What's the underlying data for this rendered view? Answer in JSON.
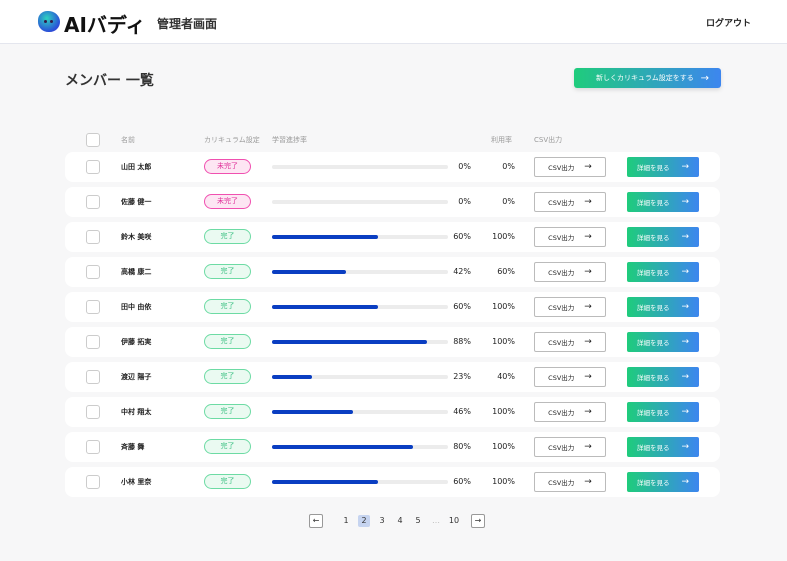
{
  "header": {
    "logo": "AIバディ",
    "subtitle": "管理者画面",
    "logout": "ログアウト"
  },
  "page": {
    "title": "メンバー 一覧",
    "new_button": "新しくカリキュラム設定をする",
    "arrow": "→"
  },
  "columns": {
    "name": "名前",
    "curriculum": "カリキュラム設定",
    "progress": "学習進捗率",
    "usage": "利用率",
    "csv": "CSV出力"
  },
  "colors": {
    "incomplete": "#e0309a",
    "complete": "#3cc184",
    "progress": "#0a3ec2"
  },
  "rows": [
    {
      "name": "山田 太郎",
      "status": "未完了",
      "done": false,
      "progress": 0,
      "progress_label": "0%",
      "usage": "0%",
      "csv": "CSV出力",
      "detail": "詳細を見る"
    },
    {
      "name": "佐藤 健一",
      "status": "未完了",
      "done": false,
      "progress": 0,
      "progress_label": "0%",
      "usage": "0%",
      "csv": "CSV出力",
      "detail": "詳細を見る"
    },
    {
      "name": "鈴木 美咲",
      "status": "完了",
      "done": true,
      "progress": 60,
      "progress_label": "60%",
      "usage": "100%",
      "csv": "CSV出力",
      "detail": "詳細を見る"
    },
    {
      "name": "高橋 康二",
      "status": "完了",
      "done": true,
      "progress": 42,
      "progress_label": "42%",
      "usage": "60%",
      "csv": "CSV出力",
      "detail": "詳細を見る"
    },
    {
      "name": "田中 由依",
      "status": "完了",
      "done": true,
      "progress": 60,
      "progress_label": "60%",
      "usage": "100%",
      "csv": "CSV出力",
      "detail": "詳細を見る"
    },
    {
      "name": "伊藤 拓実",
      "status": "完了",
      "done": true,
      "progress": 88,
      "progress_label": "88%",
      "usage": "100%",
      "csv": "CSV出力",
      "detail": "詳細を見る"
    },
    {
      "name": "渡辺 陽子",
      "status": "完了",
      "done": true,
      "progress": 23,
      "progress_label": "23%",
      "usage": "40%",
      "csv": "CSV出力",
      "detail": "詳細を見る"
    },
    {
      "name": "中村 翔太",
      "status": "完了",
      "done": true,
      "progress": 46,
      "progress_label": "46%",
      "usage": "100%",
      "csv": "CSV出力",
      "detail": "詳細を見る"
    },
    {
      "name": "斉藤 舞",
      "status": "完了",
      "done": true,
      "progress": 80,
      "progress_label": "80%",
      "usage": "100%",
      "csv": "CSV出力",
      "detail": "詳細を見る"
    },
    {
      "name": "小林 里奈",
      "status": "完了",
      "done": true,
      "progress": 60,
      "progress_label": "60%",
      "usage": "100%",
      "csv": "CSV出力",
      "detail": "詳細を見る"
    }
  ],
  "pagination": {
    "prev": "←",
    "next": "→",
    "pages": [
      "1",
      "2",
      "3",
      "4",
      "5",
      "…",
      "10"
    ],
    "current": "2"
  }
}
